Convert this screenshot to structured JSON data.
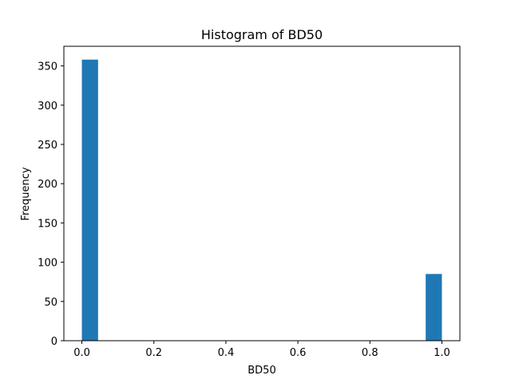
{
  "chart_data": {
    "type": "bar",
    "title": "Histogram of BD50",
    "xlabel": "BD50",
    "ylabel": "Frequency",
    "xlim": [
      -0.05,
      1.05
    ],
    "ylim": [
      0,
      375
    ],
    "xticks": [
      0.0,
      0.2,
      0.4,
      0.6,
      0.8,
      1.0
    ],
    "xtick_labels": [
      "0.0",
      "0.2",
      "0.4",
      "0.6",
      "0.8",
      "1.0"
    ],
    "yticks": [
      0,
      50,
      100,
      150,
      200,
      250,
      300,
      350
    ],
    "ytick_labels": [
      "0",
      "50",
      "100",
      "150",
      "200",
      "250",
      "300",
      "350"
    ],
    "bins": [
      {
        "x0": 0.0,
        "x1": 0.045,
        "count": 358
      },
      {
        "x0": 0.955,
        "x1": 1.0,
        "count": 85
      }
    ],
    "bar_color": "#1f77b4",
    "grid": false,
    "legend": "none"
  }
}
